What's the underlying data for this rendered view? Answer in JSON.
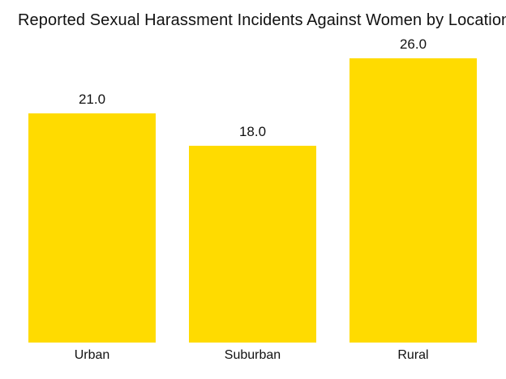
{
  "chart_data": {
    "type": "bar",
    "title": "Reported Sexual Harassment Incidents Against Women by Location",
    "categories": [
      "Urban",
      "Suburban",
      "Rural"
    ],
    "values": [
      21.0,
      18.0,
      26.0
    ],
    "display_values": [
      "21.0",
      "18.0",
      "26.0"
    ],
    "xlabel": "",
    "ylabel": "",
    "ylim": [
      0,
      27
    ],
    "grid": false,
    "legend": "none",
    "axis_lines": "none",
    "bar_color": "#FFDB00",
    "text_color": "#111111",
    "background_color": "#FFFFFF"
  }
}
